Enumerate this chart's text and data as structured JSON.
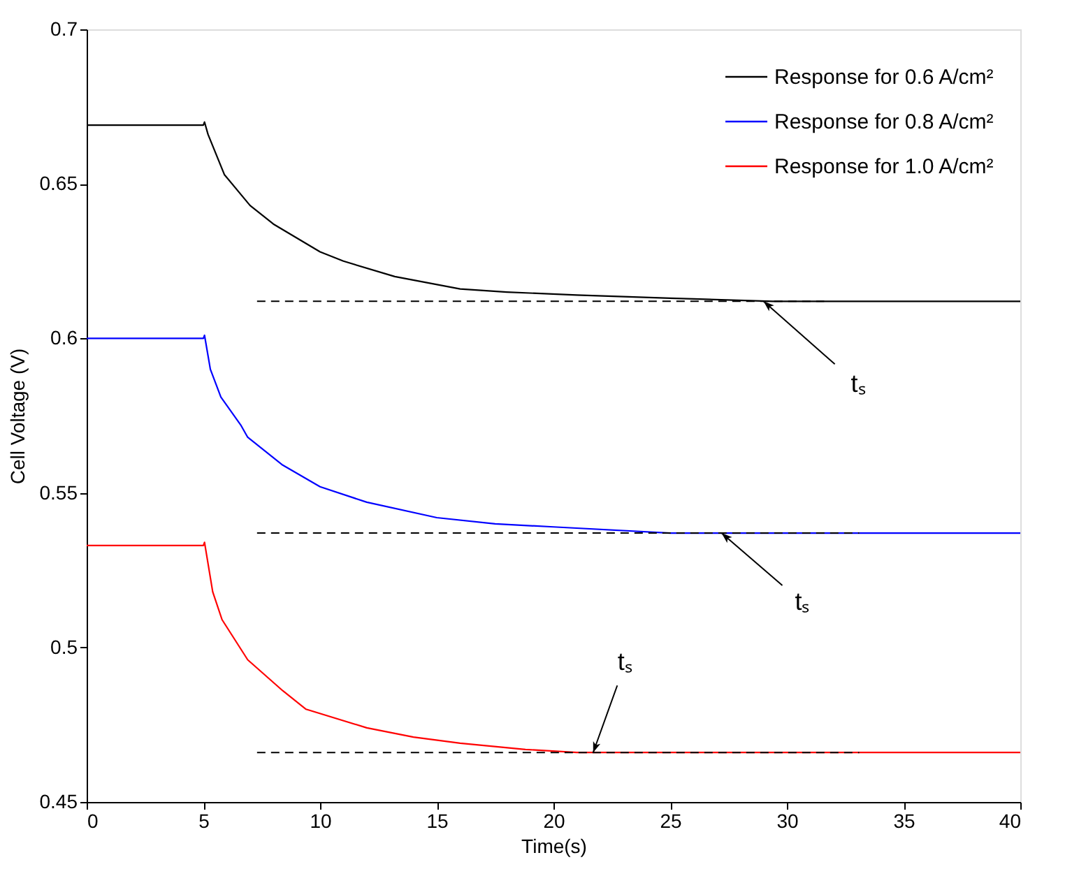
{
  "chart_data": {
    "type": "line",
    "xlabel": "Time(s)",
    "ylabel": "Cell Voltage (V)",
    "xlim": [
      0,
      40
    ],
    "xticks": [
      0,
      5,
      10,
      15,
      20,
      25,
      30,
      35,
      40
    ],
    "ylim": [
      0.45,
      0.7
    ],
    "yticks": [
      0.45,
      0.5,
      0.55,
      0.6,
      0.65,
      0.7
    ],
    "grid": false,
    "legend": "top right",
    "line_style": "solid",
    "series": [
      {
        "name": "Response for 0.6 A/cm²",
        "color": "#000000",
        "x": [
          0,
          5,
          5.05,
          5.2,
          5.9,
          7.0,
          8.0,
          10,
          11,
          13.2,
          16,
          18,
          21,
          25,
          29.4,
          35,
          40
        ],
        "values": [
          0.669,
          0.669,
          0.67,
          0.666,
          0.653,
          0.643,
          0.637,
          0.628,
          0.625,
          0.62,
          0.616,
          0.615,
          0.614,
          0.613,
          0.612,
          0.612,
          0.612
        ]
      },
      {
        "name": "Response for 0.8 A/cm²",
        "color": "#0000ff",
        "x": [
          0,
          5,
          5.05,
          5.3,
          5.75,
          6.6,
          6.9,
          8.4,
          10,
          12,
          15,
          17.5,
          20,
          25,
          30,
          40
        ],
        "values": [
          0.6,
          0.6,
          0.601,
          0.59,
          0.581,
          0.572,
          0.568,
          0.559,
          0.552,
          0.547,
          0.542,
          0.54,
          0.539,
          0.537,
          0.537,
          0.537
        ]
      },
      {
        "name": "Response for 1.0 A/cm²",
        "color": "#ff0000",
        "x": [
          0,
          5,
          5.05,
          5.4,
          5.8,
          6.9,
          8.4,
          9.4,
          12,
          14,
          16,
          18.8,
          21,
          25,
          30,
          40
        ],
        "values": [
          0.533,
          0.533,
          0.534,
          0.518,
          0.509,
          0.496,
          0.486,
          0.48,
          0.474,
          0.471,
          0.469,
          0.467,
          0.466,
          0.466,
          0.466,
          0.466
        ]
      },
      {
        "type": "line",
        "line_style": "dashed",
        "color": "#000000",
        "x": [
          7.3,
          31.6
        ],
        "values": [
          0.612,
          0.612
        ]
      },
      {
        "type": "line",
        "line_style": "dashed",
        "color": "#000000",
        "x": [
          7.3,
          33.1
        ],
        "values": [
          0.537,
          0.537
        ]
      },
      {
        "type": "line",
        "line_style": "dashed",
        "color": "#000000",
        "x": [
          7.3,
          33.1
        ],
        "values": [
          0.466,
          0.466
        ]
      }
    ],
    "annotations": [
      {
        "text": "tₛ",
        "x": 29.0,
        "y": 0.612
      },
      {
        "text": "tₛ",
        "x": 27.2,
        "y": 0.537
      },
      {
        "text": "tₛ",
        "x": 21.7,
        "y": 0.466
      }
    ]
  }
}
